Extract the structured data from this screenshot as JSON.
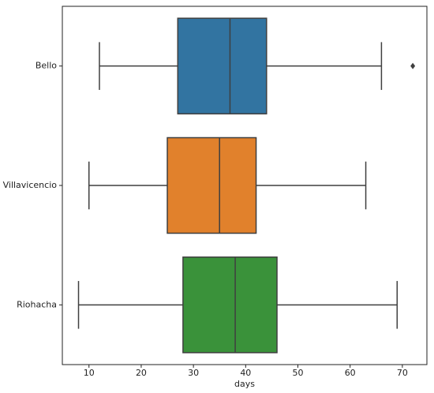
{
  "chart_data": {
    "type": "boxplot",
    "orientation": "horizontal",
    "xlabel": "days",
    "categories": [
      "Bello",
      "Villavicencio",
      "Riohacha"
    ],
    "colors": [
      "#3274a1",
      "#e1812c",
      "#3a923a"
    ],
    "boxes": [
      {
        "whislo": 12,
        "q1": 27,
        "med": 37,
        "q3": 44,
        "whishi": 66,
        "fliers": [
          72
        ]
      },
      {
        "whislo": 10,
        "q1": 25,
        "med": 35,
        "q3": 42,
        "whishi": 63,
        "fliers": []
      },
      {
        "whislo": 8,
        "q1": 28,
        "med": 38,
        "q3": 46,
        "whishi": 69,
        "fliers": []
      }
    ],
    "xlim": [
      4.9,
      74.7
    ],
    "xticks": [
      10,
      20,
      30,
      40,
      50,
      60,
      70
    ]
  }
}
